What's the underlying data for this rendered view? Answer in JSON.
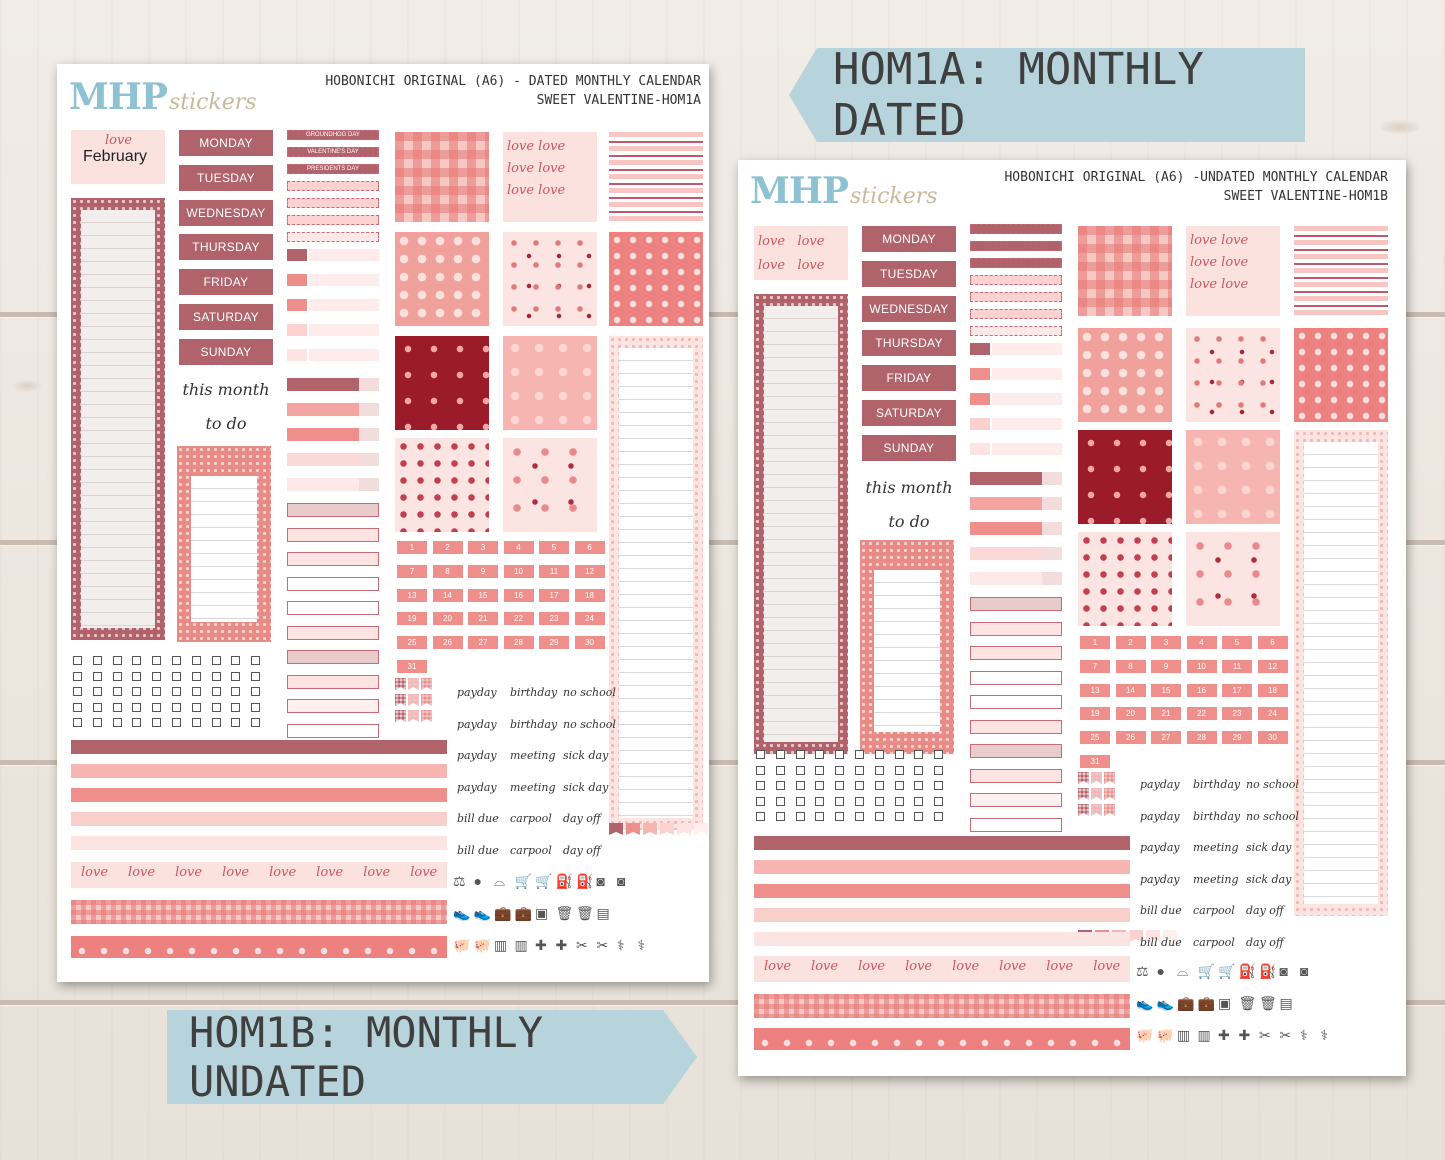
{
  "tags": {
    "dated": "HOM1A: MONTHLY DATED",
    "undated": "HOM1B: MONTHLY UNDATED"
  },
  "sheet_dated": {
    "logo_main": "MHP",
    "logo_sub": "stickers",
    "title_line1": "HOBONICHI ORIGINAL (A6) - DATED MONTHLY CALENDAR",
    "title_line2": "SWEET VALENTINE-HOM1A",
    "month_label": "February",
    "love_word": "love",
    "holidays": [
      "GROUNDHOG DAY",
      "VALENTINE'S DAY",
      "PRESIDENTS DAY"
    ]
  },
  "sheet_undated": {
    "logo_main": "MHP",
    "logo_sub": "stickers",
    "title_line1": "HOBONICHI ORIGINAL (A6) -UNDATED MONTHLY CALENDAR",
    "title_line2": "SWEET VALENTINE-HOM1B"
  },
  "days": [
    "MONDAY",
    "TUESDAY",
    "WEDNESDAY",
    "THURSDAY",
    "FRIDAY",
    "SATURDAY",
    "SUNDAY"
  ],
  "this_month": "this month",
  "to_do": "to do",
  "dates": [
    "1",
    "2",
    "3",
    "4",
    "5",
    "6",
    "7",
    "8",
    "9",
    "10",
    "11",
    "12",
    "13",
    "14",
    "15",
    "16",
    "17",
    "18",
    "19",
    "20",
    "21",
    "22",
    "23",
    "24",
    "25",
    "26",
    "27",
    "28",
    "29",
    "30",
    "31"
  ],
  "words": [
    [
      "payday",
      "birthday",
      "no school"
    ],
    [
      "payday",
      "birthday",
      "no school"
    ],
    [
      "payday",
      "meeting",
      "sick day"
    ],
    [
      "payday",
      "meeting",
      "sick day"
    ],
    [
      "bill due",
      "carpool",
      "day off"
    ],
    [
      "bill due",
      "carpool",
      "day off"
    ]
  ],
  "washi_love": [
    "love",
    "love",
    "love",
    "love",
    "love",
    "love",
    "love",
    "love"
  ],
  "colors": {
    "rose": "#b0636b",
    "coral": "#ef8f8b",
    "blush": "#fbe4e1",
    "burgundy": "#9b1b2b",
    "tag_blue": "#b7d3dc",
    "logo_blue": "#8ec1d2"
  },
  "icons_row1": [
    "scale-icon",
    "kettlebell-icon",
    "tooth-icon",
    "shopping-cart-icon",
    "shopping-cart-icon",
    "gas-pump-icon",
    "gas-pump-icon",
    "washer-icon",
    "washer-icon"
  ],
  "icons_row2": [
    "sneaker-icon",
    "sneaker-icon",
    "suitcase-icon",
    "suitcase-icon",
    "bathroom-scale-icon",
    "trash-can-icon",
    "trash-can-icon",
    "document-icon"
  ],
  "icons_row3": [
    "piggy-bank-icon",
    "piggy-bank-icon",
    "cash-icon",
    "cash-icon",
    "first-aid-icon",
    "first-aid-icon",
    "hair-tools-icon",
    "hair-tools-icon",
    "stethoscope-icon",
    "stethoscope-icon"
  ]
}
